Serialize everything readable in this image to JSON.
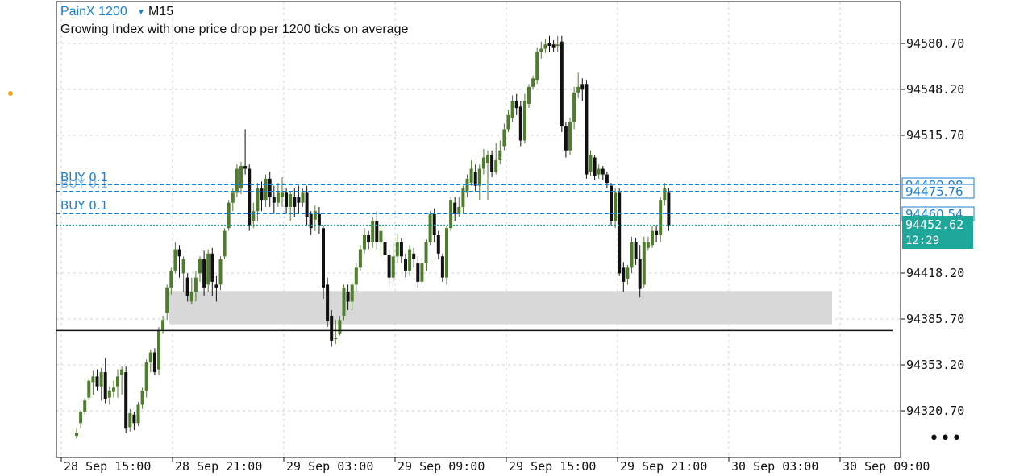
{
  "header": {
    "symbol": "PainX 1200",
    "timeframe": "M15",
    "description": "Growing Index with one price drop per 1200 ticks on average"
  },
  "colors": {
    "bull": "#4e7d2c",
    "bear": "#111111",
    "order_line": "#1a7fd4",
    "bid_line": "#1ea89a",
    "zone": "#d8d8d8",
    "grid": "#d0d0d0"
  },
  "y_axis": {
    "ticks": [
      "94580.70",
      "94548.20",
      "94515.70",
      "94418.20",
      "94385.70",
      "94353.20",
      "94320.70"
    ]
  },
  "x_axis": {
    "ticks": [
      "28 Sep 15:00",
      "28 Sep 21:00",
      "29 Sep 03:00",
      "29 Sep 09:00",
      "29 Sep 15:00",
      "29 Sep 21:00",
      "30 Sep 03:00",
      "30 Sep 09:00"
    ]
  },
  "orders": [
    {
      "label": "BUY 0.1",
      "price_label": "94480.98"
    },
    {
      "label": "BUY 0.1",
      "price_label": "94475.76"
    },
    {
      "label": "BUY 0.1",
      "price_label": "94460.54"
    }
  ],
  "current": {
    "price": "94452.62",
    "countdown": "12:29"
  },
  "more_icon": "•••",
  "chart_data": {
    "type": "candlestick",
    "symbol": "PainX 1200",
    "timeframe": "M15",
    "y_range": [
      94301,
      94611
    ],
    "support_level": 94377.5,
    "zone": {
      "top": 94405.5,
      "bottom": 94382
    },
    "candles": [
      [
        94305,
        94303,
        94308,
        94301
      ],
      [
        94320,
        94312,
        94321,
        94308
      ],
      [
        94328,
        94320,
        94330,
        94318
      ],
      [
        94342,
        94330,
        94344,
        94328
      ],
      [
        94345,
        94341,
        94349,
        94332
      ],
      [
        94338,
        94345,
        94350,
        94335
      ],
      [
        94348,
        94338,
        94351,
        94328
      ],
      [
        94329,
        94348,
        94358,
        94326
      ],
      [
        94335,
        94330,
        94338,
        94325
      ],
      [
        94337,
        94334,
        94342,
        94330
      ],
      [
        94345,
        94338,
        94350,
        94330
      ],
      [
        94350,
        94346,
        94352,
        94332
      ],
      [
        94308,
        94348,
        94352,
        94305
      ],
      [
        94319,
        94309,
        94322,
        94306
      ],
      [
        94312,
        94318,
        94320,
        94307
      ],
      [
        94325,
        94312,
        94327,
        94310
      ],
      [
        94335,
        94325,
        94337,
        94322
      ],
      [
        94355,
        94335,
        94357,
        94330
      ],
      [
        94362,
        94355,
        94364,
        94348
      ],
      [
        94348,
        94362,
        94365,
        94346
      ],
      [
        94378,
        94350,
        94380,
        94346
      ],
      [
        94385,
        94378,
        94388,
        94375
      ],
      [
        94408,
        94390,
        94410,
        94385
      ],
      [
        94420,
        94408,
        94422,
        94403
      ],
      [
        94435,
        94420,
        94440,
        94418
      ],
      [
        94430,
        94435,
        94438,
        94415
      ],
      [
        94428,
        94418,
        94430,
        94405
      ],
      [
        94402,
        94415,
        94418,
        94398
      ],
      [
        94405,
        94398,
        94415,
        94396
      ],
      [
        94415,
        94405,
        94420,
        94398
      ],
      [
        94428,
        94418,
        94430,
        94412
      ],
      [
        94408,
        94428,
        94434,
        94402
      ],
      [
        94432,
        94410,
        94435,
        94405
      ],
      [
        94412,
        94432,
        94436,
        94402
      ],
      [
        94408,
        94410,
        94416,
        94398
      ],
      [
        94428,
        94410,
        94430,
        94406
      ],
      [
        94448,
        94430,
        94450,
        94428
      ],
      [
        94468,
        94450,
        94470,
        94448
      ],
      [
        94475,
        94468,
        94478,
        94462
      ],
      [
        94492,
        94475,
        94495,
        94472
      ],
      [
        94494,
        94478,
        94497,
        94474
      ],
      [
        94492,
        94494,
        94520,
        94488
      ],
      [
        94452,
        94492,
        94495,
        94448
      ],
      [
        94462,
        94455,
        94468,
        94450
      ],
      [
        94478,
        94462,
        94482,
        94455
      ],
      [
        94470,
        94478,
        94483,
        94462
      ],
      [
        94485,
        94470,
        94488,
        94465
      ],
      [
        94472,
        94485,
        94490,
        94465
      ],
      [
        94468,
        94472,
        94480,
        94460
      ],
      [
        94475,
        94468,
        94482,
        94465
      ],
      [
        94475,
        94472,
        94486,
        94465
      ],
      [
        94465,
        94475,
        94478,
        94460
      ],
      [
        94474,
        94465,
        94476,
        94455
      ],
      [
        94465,
        94472,
        94478,
        94458
      ],
      [
        94468,
        94472,
        94480,
        94460
      ],
      [
        94475,
        94468,
        94478,
        94465
      ],
      [
        94458,
        94475,
        94480,
        94452
      ],
      [
        94450,
        94460,
        94462,
        94445
      ],
      [
        94462,
        94456,
        94466,
        94448
      ],
      [
        94452,
        94460,
        94465,
        94446
      ],
      [
        94408,
        94450,
        94452,
        94400
      ],
      [
        94384,
        94410,
        94415,
        94380
      ],
      [
        94370,
        94388,
        94392,
        94366
      ],
      [
        94372,
        94372,
        94385,
        94368
      ],
      [
        94385,
        94375,
        94388,
        94374
      ],
      [
        94408,
        94388,
        94410,
        94385
      ],
      [
        94398,
        94405,
        94410,
        94392
      ],
      [
        94410,
        94398,
        94412,
        94392
      ],
      [
        94422,
        94410,
        94425,
        94405
      ],
      [
        94435,
        94422,
        94438,
        94420
      ],
      [
        94445,
        94435,
        94450,
        94432
      ],
      [
        94440,
        94445,
        94448,
        94435
      ],
      [
        94455,
        94440,
        94458,
        94436
      ],
      [
        94440,
        94455,
        94462,
        94435
      ],
      [
        94448,
        94440,
        94452,
        94430
      ],
      [
        94431,
        94440,
        94448,
        94425
      ],
      [
        94415,
        94431,
        94435,
        94410
      ],
      [
        94430,
        94415,
        94440,
        94412
      ],
      [
        94440,
        94430,
        94446,
        94425
      ],
      [
        94430,
        94440,
        94443,
        94425
      ],
      [
        94420,
        94428,
        94432,
        94415
      ],
      [
        94435,
        94420,
        94438,
        94416
      ],
      [
        94428,
        94432,
        94436,
        94422
      ],
      [
        94412,
        94425,
        94430,
        94408
      ],
      [
        94425,
        94412,
        94428,
        94410
      ],
      [
        94440,
        94425,
        94442,
        94420
      ],
      [
        94460,
        94440,
        94462,
        94438
      ],
      [
        94445,
        94460,
        94464,
        94440
      ],
      [
        94432,
        94445,
        94448,
        94428
      ],
      [
        94415,
        94430,
        94432,
        94412
      ],
      [
        94450,
        94415,
        94452,
        94410
      ],
      [
        94470,
        94450,
        94472,
        94448
      ],
      [
        94460,
        94468,
        94472,
        94455
      ],
      [
        94465,
        94460,
        94472,
        94458
      ],
      [
        94478,
        94465,
        94480,
        94460
      ],
      [
        94485,
        94475,
        94488,
        94472
      ],
      [
        94492,
        94482,
        94498,
        94480
      ],
      [
        94480,
        94490,
        94495,
        94476
      ],
      [
        94492,
        94480,
        94495,
        94470
      ],
      [
        94500,
        94492,
        94506,
        94488
      ],
      [
        94502,
        94496,
        94505,
        94470
      ],
      [
        94490,
        94502,
        94505,
        94486
      ],
      [
        94498,
        94490,
        94510,
        94488
      ],
      [
        94505,
        94498,
        94512,
        94495
      ],
      [
        94520,
        94508,
        94524,
        94505
      ],
      [
        94530,
        94520,
        94534,
        94518
      ],
      [
        94540,
        94528,
        94544,
        94525
      ],
      [
        94535,
        94540,
        94545,
        94530
      ],
      [
        94512,
        94536,
        94540,
        94508
      ],
      [
        94540,
        94512,
        94545,
        94510
      ],
      [
        94550,
        94538,
        94552,
        94535
      ],
      [
        94556,
        94550,
        94558,
        94548
      ],
      [
        94575,
        94555,
        94578,
        94552
      ],
      [
        94577,
        94575,
        94582,
        94570
      ],
      [
        94580,
        94577,
        94584,
        94574
      ],
      [
        94579,
        94581,
        94586,
        94575
      ],
      [
        94578,
        94580,
        94583,
        94575
      ],
      [
        94580,
        94579,
        94586,
        94575
      ],
      [
        94522,
        94582,
        94586,
        94518
      ],
      [
        94505,
        94522,
        94525,
        94500
      ],
      [
        94525,
        94505,
        94528,
        94502
      ],
      [
        94546,
        94525,
        94550,
        94520
      ],
      [
        94550,
        94546,
        94560,
        94542
      ],
      [
        94548,
        94552,
        94556,
        94540
      ],
      [
        94488,
        94552,
        94555,
        94485
      ],
      [
        94502,
        94490,
        94505,
        94487
      ],
      [
        94487,
        94500,
        94502,
        94484
      ],
      [
        94492,
        94488,
        94495,
        94485
      ],
      [
        94488,
        94492,
        94494,
        94484
      ],
      [
        94482,
        94488,
        94490,
        94478
      ],
      [
        94455,
        94480,
        94482,
        94452
      ],
      [
        94475,
        94455,
        94478,
        94450
      ],
      [
        94418,
        94475,
        94478,
        94416
      ],
      [
        94412,
        94422,
        94426,
        94405
      ],
      [
        94422,
        94414,
        94424,
        94410
      ],
      [
        94440,
        94422,
        94444,
        94418
      ],
      [
        94428,
        94440,
        94443,
        94424
      ],
      [
        94407,
        94428,
        94438,
        94401
      ],
      [
        94440,
        94410,
        94444,
        94408
      ],
      [
        94440,
        94436,
        94444,
        94434
      ],
      [
        94448,
        94438,
        94452,
        94436
      ],
      [
        94445,
        94448,
        94452,
        94440
      ],
      [
        94470,
        94445,
        94472,
        94440
      ],
      [
        94478,
        94470,
        94482,
        94466
      ],
      [
        94452,
        94475,
        94478,
        94448
      ]
    ]
  }
}
